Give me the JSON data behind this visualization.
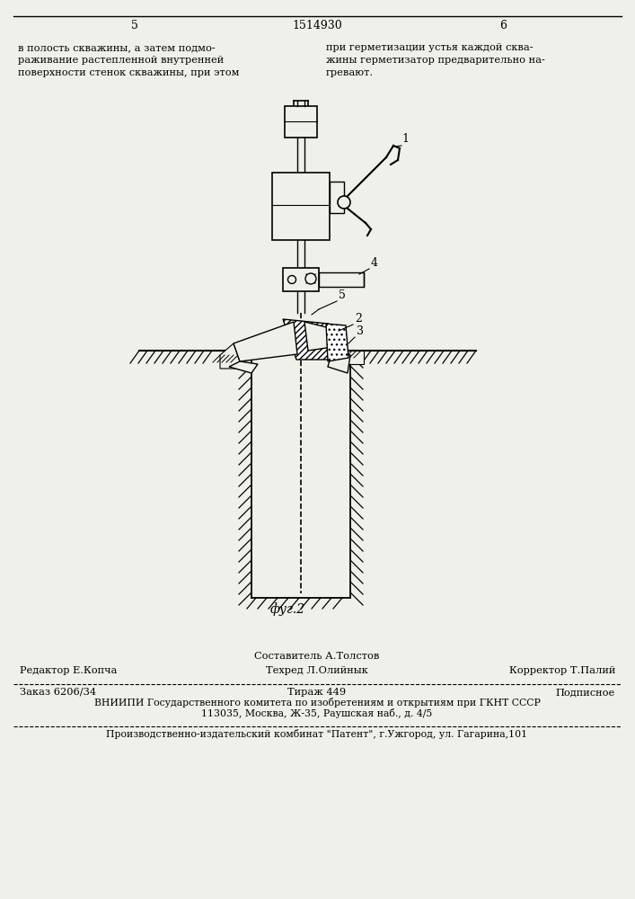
{
  "bg_color": "#f0f0eb",
  "page_number_left": "5",
  "page_number_center": "1514930",
  "page_number_right": "6",
  "text_left_col": [
    "в полость скважины, а затем подмо-",
    "раживание растепленной внутренней",
    "поверхности стенок скважины, при этом"
  ],
  "text_right_col": [
    "при герметизации устья каждой сква-",
    "жины герметизатор предварительно на-",
    "гревают."
  ],
  "fig_caption": "фуг.2",
  "footer_line1_left": "Редактор Е.Копча",
  "footer_line1_center_top": "Составитель А.Толстов",
  "footer_line1_center": "Техред Л.Олийнык",
  "footer_line1_right": "Корректор Т.Палий",
  "footer_line2_left": "Заказ 6206/34",
  "footer_line2_center": "Тираж 449",
  "footer_line2_right": "Подписное",
  "footer_line3": "ВНИИПИ Государственного комитета по изобретениям и открытиям при ГКНТ СССР",
  "footer_line4": "113035, Москва, Ж-35, Раушская наб., д. 4/5",
  "footer_line5": "Производственно-издательский комбинат \"Патент\", г.Ужгород, ул. Гагарина,101"
}
